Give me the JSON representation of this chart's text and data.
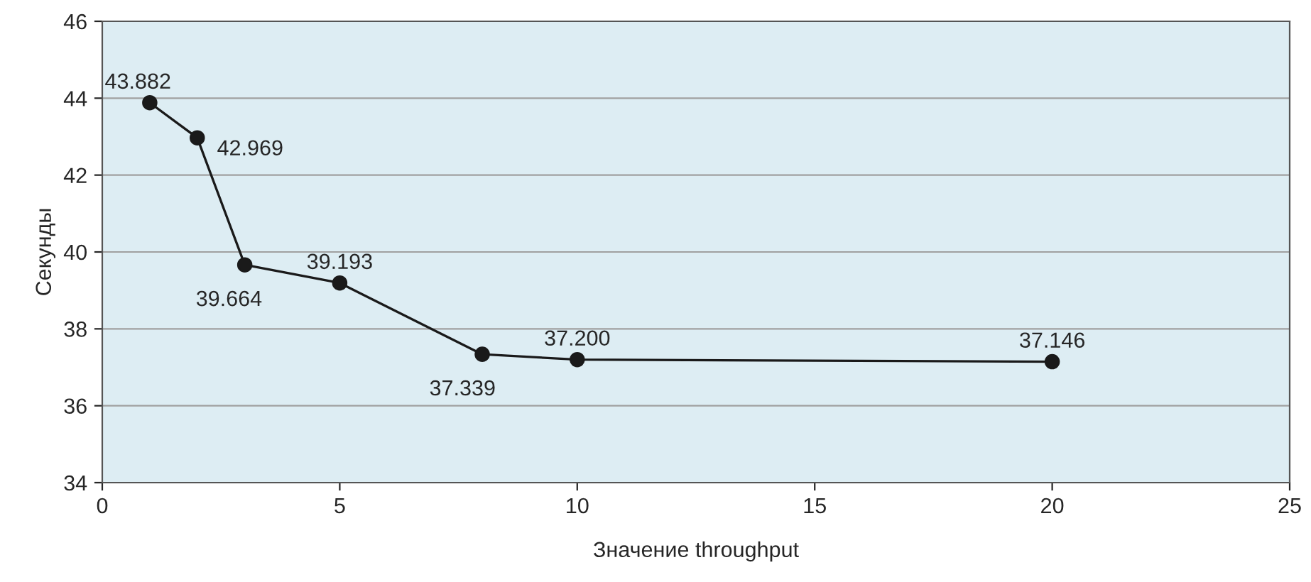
{
  "chart_data": {
    "type": "line",
    "xlabel": "Значение throughput",
    "ylabel": "Секунды",
    "x": [
      1,
      2,
      3,
      5,
      8,
      10,
      20
    ],
    "series": [
      {
        "color": "#1a1a1a",
        "values": [
          43.882,
          42.969,
          39.664,
          39.193,
          37.339,
          37.2,
          37.146
        ],
        "value_labels": [
          "43.882",
          "42.969",
          "39.664",
          "39.193",
          "37.339",
          "37.200",
          "37.146"
        ]
      }
    ],
    "xlim": [
      0,
      25
    ],
    "xticks": [
      0,
      5,
      10,
      15,
      20,
      25
    ],
    "ylim": [
      34,
      46
    ],
    "yticks": [
      34,
      36,
      38,
      40,
      42,
      44,
      46
    ],
    "grid": "y",
    "marker": "circle",
    "line_style": "solid"
  }
}
